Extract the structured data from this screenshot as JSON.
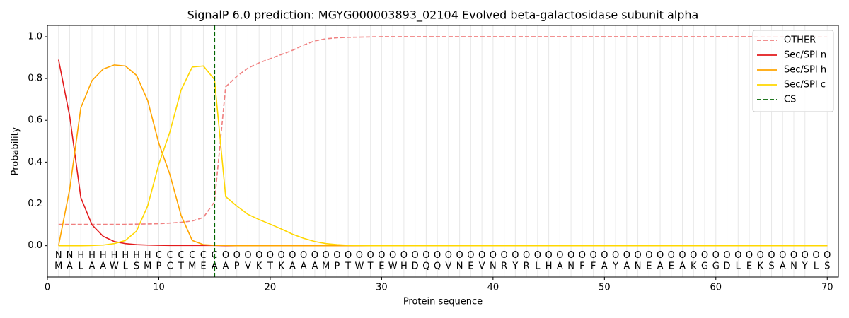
{
  "chart_data": {
    "type": "line",
    "title": "SignalP 6.0 prediction: MGYG000003893_02104 Evolved beta-galactosidase subunit alpha",
    "xlabel": "Protein sequence",
    "ylabel": "Probability",
    "x": [
      1,
      2,
      3,
      4,
      5,
      6,
      7,
      8,
      9,
      10,
      11,
      12,
      13,
      14,
      15,
      16,
      17,
      18,
      19,
      20,
      21,
      22,
      23,
      24,
      25,
      26,
      27,
      28,
      29,
      30,
      31,
      32,
      33,
      34,
      35,
      36,
      37,
      38,
      39,
      40,
      41,
      42,
      43,
      44,
      45,
      46,
      47,
      48,
      49,
      50,
      51,
      52,
      53,
      54,
      55,
      56,
      57,
      58,
      59,
      60,
      61,
      62,
      63,
      64,
      65,
      66,
      67,
      68,
      69,
      70
    ],
    "sequence": [
      "M",
      "A",
      "L",
      "A",
      "A",
      "W",
      "L",
      "S",
      "M",
      "P",
      "C",
      "T",
      "M",
      "E",
      "A",
      "A",
      "P",
      "V",
      "K",
      "T",
      "K",
      "A",
      "A",
      "A",
      "M",
      "P",
      "T",
      "W",
      "T",
      "E",
      "W",
      "H",
      "D",
      "Q",
      "Q",
      "V",
      "N",
      "E",
      "V",
      "N",
      "R",
      "Y",
      "R",
      "L",
      "H",
      "A",
      "N",
      "F",
      "F",
      "A",
      "Y",
      "A",
      "N",
      "E",
      "A",
      "E",
      "A",
      "K",
      "G",
      "G",
      "D",
      "L",
      "E",
      "K",
      "S",
      "A",
      "N",
      "Y",
      "L",
      "S"
    ],
    "regions": [
      "N",
      "N",
      "H",
      "H",
      "H",
      "H",
      "H",
      "H",
      "H",
      "C",
      "C",
      "C",
      "C",
      "C",
      "C",
      "O",
      "O",
      "O",
      "O",
      "O",
      "O",
      "O",
      "O",
      "O",
      "O",
      "O",
      "O",
      "O",
      "O",
      "O",
      "O",
      "O",
      "O",
      "O",
      "O",
      "O",
      "O",
      "O",
      "O",
      "O",
      "O",
      "O",
      "O",
      "O",
      "O",
      "O",
      "O",
      "O",
      "O",
      "O",
      "O",
      "O",
      "O",
      "O",
      "O",
      "O",
      "O",
      "O",
      "O",
      "O",
      "O",
      "O",
      "O",
      "O",
      "O",
      "O",
      "O",
      "O",
      "O",
      "O"
    ],
    "region_colors": {
      "N": "#ff0000",
      "H": "#ffa500",
      "C": "#ffc800",
      "O": "#808080"
    },
    "series": [
      {
        "name": "OTHER",
        "color": "#f08080",
        "dashed": true,
        "values": [
          0.102,
          0.102,
          0.102,
          0.102,
          0.102,
          0.102,
          0.102,
          0.103,
          0.104,
          0.105,
          0.108,
          0.112,
          0.118,
          0.135,
          0.21,
          0.76,
          0.81,
          0.85,
          0.875,
          0.895,
          0.915,
          0.935,
          0.96,
          0.98,
          0.99,
          0.995,
          0.997,
          0.998,
          0.999,
          1.0,
          1.0,
          1.0,
          1.0,
          1.0,
          1.0,
          1.0,
          1.0,
          1.0,
          1.0,
          1.0,
          1.0,
          1.0,
          1.0,
          1.0,
          1.0,
          1.0,
          1.0,
          1.0,
          1.0,
          1.0,
          1.0,
          1.0,
          1.0,
          1.0,
          1.0,
          1.0,
          1.0,
          1.0,
          1.0,
          1.0,
          1.0,
          1.0,
          1.0,
          1.0,
          1.0,
          1.0,
          1.0,
          1.0,
          1.0,
          1.0
        ]
      },
      {
        "name": "Sec/SPI n",
        "color": "#e31a1c",
        "values": [
          0.89,
          0.62,
          0.23,
          0.1,
          0.045,
          0.02,
          0.01,
          0.005,
          0.003,
          0.002,
          0.001,
          0.001,
          0.001,
          0.001,
          0.001,
          0,
          0,
          0,
          0,
          0,
          0,
          0,
          0,
          0,
          0,
          0,
          0,
          0,
          0,
          0,
          0,
          0,
          0,
          0,
          0,
          0,
          0,
          0,
          0,
          0,
          0,
          0,
          0,
          0,
          0,
          0,
          0,
          0,
          0,
          0,
          0,
          0,
          0,
          0,
          0,
          0,
          0,
          0,
          0,
          0,
          0,
          0,
          0,
          0,
          0,
          0,
          0,
          0,
          0,
          0
        ]
      },
      {
        "name": "Sec/SPI h",
        "color": "#ffa500",
        "values": [
          0.0,
          0.27,
          0.66,
          0.79,
          0.845,
          0.865,
          0.86,
          0.815,
          0.695,
          0.49,
          0.34,
          0.145,
          0.025,
          0.005,
          0.002,
          0.001,
          0,
          0,
          0,
          0,
          0,
          0,
          0,
          0,
          0,
          0,
          0,
          0,
          0,
          0,
          0,
          0,
          0,
          0,
          0,
          0,
          0,
          0,
          0,
          0,
          0,
          0,
          0,
          0,
          0,
          0,
          0,
          0,
          0,
          0,
          0,
          0,
          0,
          0,
          0,
          0,
          0,
          0,
          0,
          0,
          0,
          0,
          0,
          0,
          0,
          0,
          0,
          0,
          0,
          0
        ]
      },
      {
        "name": "Sec/SPI c",
        "color": "#ffd700",
        "values": [
          0.0,
          0.0,
          0.0,
          0.001,
          0.003,
          0.01,
          0.025,
          0.07,
          0.19,
          0.39,
          0.545,
          0.745,
          0.855,
          0.86,
          0.795,
          0.235,
          0.19,
          0.15,
          0.125,
          0.103,
          0.08,
          0.055,
          0.035,
          0.02,
          0.01,
          0.005,
          0.002,
          0.001,
          0,
          0,
          0,
          0,
          0,
          0,
          0,
          0,
          0,
          0,
          0,
          0,
          0,
          0,
          0,
          0,
          0,
          0,
          0,
          0,
          0,
          0,
          0,
          0,
          0,
          0,
          0,
          0,
          0,
          0,
          0,
          0,
          0,
          0,
          0,
          0,
          0,
          0,
          0,
          0,
          0,
          0
        ]
      }
    ],
    "cs": {
      "name": "CS",
      "x": 15,
      "color": "#006400"
    },
    "xlim": [
      0,
      71
    ],
    "ylim": [
      -0.15,
      1.054
    ],
    "xticks": [
      0,
      10,
      20,
      30,
      40,
      50,
      60,
      70
    ],
    "yticks": [
      {
        "value": 0,
        "label": "0.0"
      },
      {
        "value": 0.2,
        "label": "0.2"
      },
      {
        "value": 0.4,
        "label": "0.4"
      },
      {
        "value": 0.6,
        "label": "0.6"
      },
      {
        "value": 0.8,
        "label": "0.8"
      },
      {
        "value": 1,
        "label": "1.0"
      }
    ],
    "legend": "upper right"
  }
}
